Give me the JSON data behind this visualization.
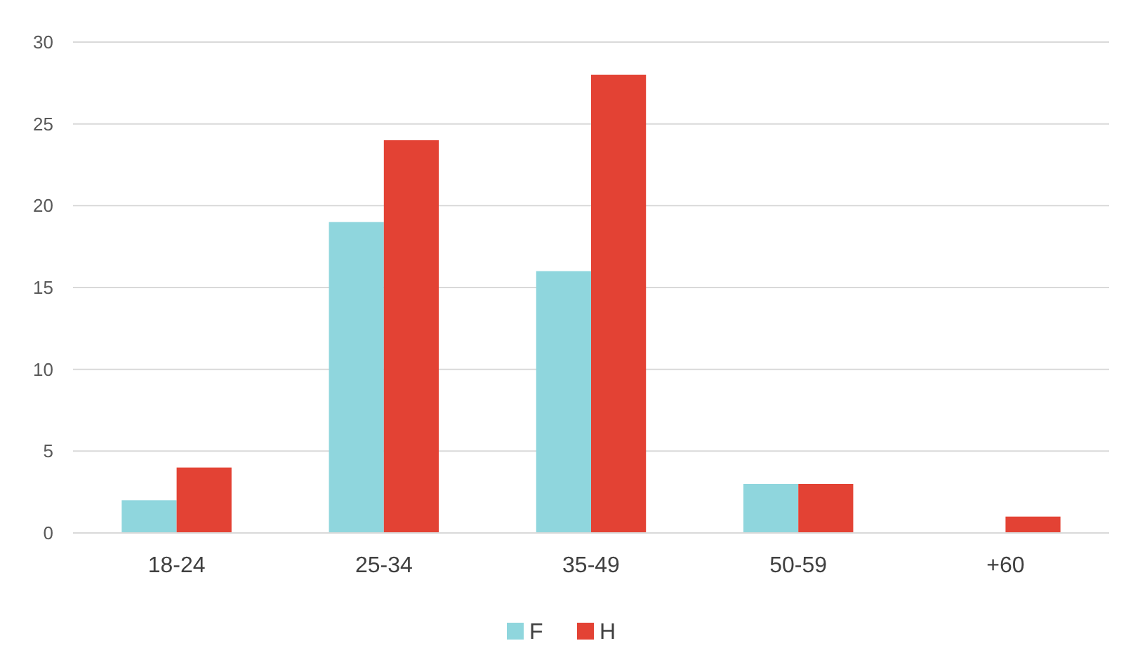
{
  "chart_data": {
    "type": "bar",
    "categories": [
      "18-24",
      "25-34",
      "35-49",
      "50-59",
      "+60"
    ],
    "series": [
      {
        "name": "F",
        "color": "#8fd6dd",
        "values": [
          2,
          19,
          16,
          3,
          0
        ]
      },
      {
        "name": "H",
        "color": "#e34234",
        "values": [
          4,
          24,
          28,
          3,
          1
        ]
      }
    ],
    "ylim": [
      0,
      30
    ],
    "yticks": [
      0,
      5,
      10,
      15,
      20,
      25,
      30
    ],
    "grid": "y",
    "legend": "bottom"
  }
}
